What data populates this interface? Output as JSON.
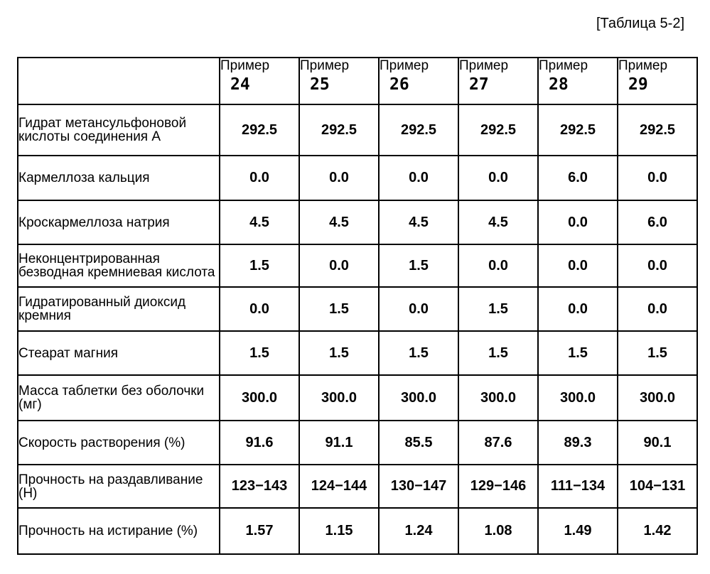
{
  "caption": "[Таблица 5-2]",
  "header": {
    "word": "Пример",
    "numbers": [
      "24",
      "25",
      "26",
      "27",
      "28",
      "29"
    ]
  },
  "rows": [
    {
      "label": "Гидрат метансульфоновой кислоты соединения А",
      "values": [
        "292.5",
        "292.5",
        "292.5",
        "292.5",
        "292.5",
        "292.5"
      ]
    },
    {
      "label": "Кармеллоза кальция",
      "values": [
        "0.0",
        "0.0",
        "0.0",
        "0.0",
        "6.0",
        "0.0"
      ]
    },
    {
      "label": "Кроскармеллоза натрия",
      "values": [
        "4.5",
        "4.5",
        "4.5",
        "4.5",
        "0.0",
        "6.0"
      ]
    },
    {
      "label": "Неконцентрированная безводная кремниевая кислота",
      "values": [
        "1.5",
        "0.0",
        "1.5",
        "0.0",
        "0.0",
        "0.0"
      ]
    },
    {
      "label": "Гидратированный диоксид кремния",
      "values": [
        "0.0",
        "1.5",
        "0.0",
        "1.5",
        "0.0",
        "0.0"
      ]
    },
    {
      "label": "Стеарат магния",
      "values": [
        "1.5",
        "1.5",
        "1.5",
        "1.5",
        "1.5",
        "1.5"
      ]
    },
    {
      "label": "Масса таблетки без оболочки (мг)",
      "values": [
        "300.0",
        "300.0",
        "300.0",
        "300.0",
        "300.0",
        "300.0"
      ]
    },
    {
      "label": "Скорость растворения (%)",
      "values": [
        "91.6",
        "91.1",
        "85.5",
        "87.6",
        "89.3",
        "90.1"
      ]
    },
    {
      "label": "Прочность на раздавливание (Н)",
      "values": [
        "123−143",
        "124−144",
        "130−147",
        "129−146",
        "111−134",
        "104−131"
      ]
    },
    {
      "label": "Прочность на истирание (%)",
      "values": [
        "1.57",
        "1.15",
        "1.24",
        "1.08",
        "1.49",
        "1.42"
      ]
    }
  ]
}
